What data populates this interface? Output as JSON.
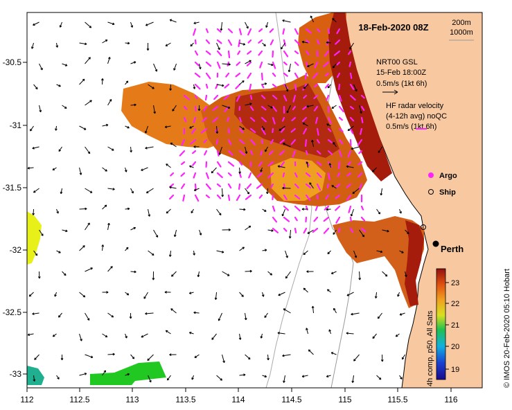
{
  "map": {
    "title": "18-Feb-2020 08Z",
    "depth_legend": [
      "200m",
      "1000m"
    ],
    "model_label": [
      "NRT00 GSL",
      "15-Feb 18:00Z",
      "0.5m/s (1kt 6h)"
    ],
    "radar_label": [
      "HF radar velocity",
      "(4-12h avg) noQC",
      "0.5m/s (1kt 6h)"
    ],
    "argo_label": "Argo",
    "ship_label": "Ship",
    "city_label": "Perth",
    "side_credit": "© IMOS 20-Feb-2020 05:10 Hobart",
    "colorbar_label": "4h comp, p50, All Sats",
    "colorbar_ticks": [
      "23",
      "22",
      "21",
      "20",
      "19"
    ],
    "x_ticks": [
      "112",
      "112.5",
      "113",
      "113.5",
      "114",
      "114.5",
      "115",
      "115.5",
      "116"
    ],
    "y_ticks": [
      "-30.5",
      "-31",
      "-31.5",
      "-32",
      "-32.5",
      "-33"
    ],
    "colors": {
      "land": "#f8c9a0",
      "sst_hot": "#a61c0c",
      "sst_warm": "#e06a12",
      "sst_mid": "#f0a020",
      "radar": "#ff22ff",
      "cold1": "#22c822",
      "cold2": "#20b090",
      "yellow": "#e8f01a"
    }
  }
}
